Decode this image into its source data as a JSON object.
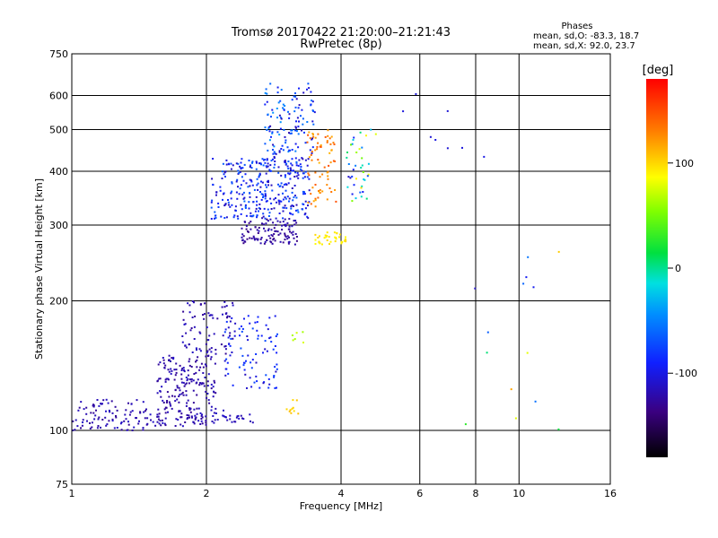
{
  "chart_data": {
    "type": "scatter",
    "title": "Tromsø 20170422 21:20:00–21:21:43",
    "subtitle": "RwPretec (8p)",
    "xlabel": "Frequency [MHz]",
    "ylabel": "Stationary phase Virtual Height [km]",
    "xscale": "log",
    "yscale": "log",
    "xlim": [
      1,
      16
    ],
    "ylim": [
      75,
      750
    ],
    "xticks": [
      1,
      2,
      4,
      6,
      8,
      10,
      16
    ],
    "xtick_labels": [
      "1",
      "2",
      "4",
      "6",
      "8",
      "10",
      "16"
    ],
    "yticks": [
      75,
      100,
      200,
      300,
      400,
      500,
      600,
      750
    ],
    "ytick_labels": [
      "75",
      "100",
      "200",
      "300",
      "400",
      "500",
      "600",
      "750"
    ],
    "grid": true,
    "stats": {
      "heading": "Phases",
      "line_o": "mean, sd,O: -83.3, 18.7",
      "line_x": "mean, sd,X:  92.0, 23.7"
    },
    "colorbar": {
      "label": "[deg]",
      "range": [
        -180,
        180
      ],
      "ticks": [
        -100,
        0,
        100
      ],
      "tick_labels": [
        "-100",
        "0",
        "100"
      ],
      "colormap": "rainbow"
    },
    "clusters": [
      {
        "f_range": [
          1.0,
          1.45
        ],
        "h_range": [
          100,
          118
        ],
        "phase": [
          -130,
          -110
        ],
        "count": 90
      },
      {
        "f_range": [
          1.45,
          2.0
        ],
        "h_range": [
          102,
          112
        ],
        "phase": [
          -130,
          -110
        ],
        "count": 70
      },
      {
        "f_range": [
          1.55,
          2.1
        ],
        "h_range": [
          112,
          150
        ],
        "phase": [
          -130,
          -110
        ],
        "count": 160
      },
      {
        "f_range": [
          1.75,
          2.3
        ],
        "h_range": [
          150,
          200
        ],
        "phase": [
          -130,
          -110
        ],
        "count": 80
      },
      {
        "f_range": [
          2.05,
          2.55
        ],
        "h_range": [
          104,
          112
        ],
        "phase": [
          -120,
          -110
        ],
        "count": 30
      },
      {
        "f_range": [
          2.2,
          2.9
        ],
        "h_range": [
          125,
          185
        ],
        "phase": [
          -115,
          -70
        ],
        "count": 90
      },
      {
        "f_range": [
          3.0,
          3.25
        ],
        "h_range": [
          105,
          118
        ],
        "phase": [
          95,
          110
        ],
        "count": 10
      },
      {
        "f_range": [
          3.05,
          3.3
        ],
        "h_range": [
          160,
          170
        ],
        "phase": [
          60,
          80
        ],
        "count": 6
      },
      {
        "f_range": [
          2.05,
          3.4
        ],
        "h_range": [
          310,
          430
        ],
        "phase": [
          -120,
          -60
        ],
        "count": 320
      },
      {
        "f_range": [
          2.4,
          3.2
        ],
        "h_range": [
          270,
          310
        ],
        "phase": [
          -135,
          -115
        ],
        "count": 110
      },
      {
        "f_range": [
          2.7,
          3.5
        ],
        "h_range": [
          420,
          640
        ],
        "phase": [
          -120,
          -40
        ],
        "count": 130
      },
      {
        "f_range": [
          3.35,
          3.9
        ],
        "h_range": [
          330,
          500
        ],
        "phase": [
          110,
          150
        ],
        "count": 70
      },
      {
        "f_range": [
          3.5,
          4.1
        ],
        "h_range": [
          270,
          290
        ],
        "phase": [
          85,
          100
        ],
        "count": 35
      },
      {
        "f_range": [
          4.1,
          4.8
        ],
        "h_range": [
          340,
          500
        ],
        "phase": [
          -110,
          100
        ],
        "count": 40
      },
      {
        "f_range": [
          5.5,
          9.5
        ],
        "h_range": [
          400,
          620
        ],
        "phase": [
          -120,
          -100
        ],
        "count": 8
      },
      {
        "f_range": [
          6.0,
          12.5
        ],
        "h_range": [
          100,
          260
        ],
        "phase": [
          -120,
          150
        ],
        "count": 14
      }
    ]
  }
}
